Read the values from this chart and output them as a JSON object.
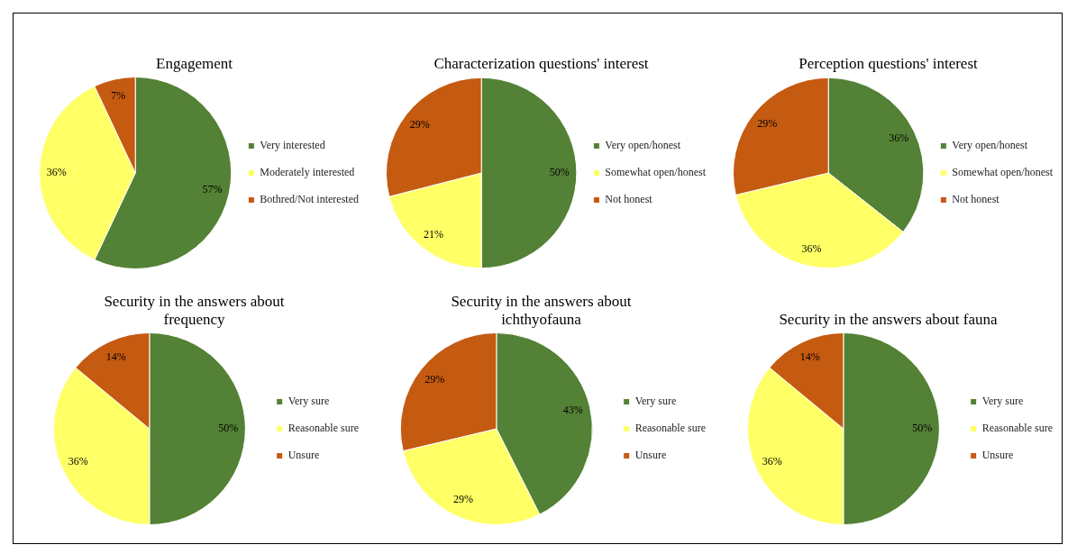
{
  "chart_data": [
    {
      "type": "pie",
      "title": "Engagement",
      "categories": [
        "Very interested",
        "Moderately interested",
        "Bothred/Not interested"
      ],
      "values": [
        57,
        36,
        7
      ],
      "value_labels": [
        "57%",
        "36%",
        "7%"
      ],
      "colors": [
        "#538135",
        "#ffff66",
        "#c55a11"
      ],
      "legend": "right"
    },
    {
      "type": "pie",
      "title": "Characterization questions' interest",
      "categories": [
        "Very open/honest",
        "Somewhat open/honest",
        "Not honest"
      ],
      "values": [
        50,
        21,
        29
      ],
      "value_labels": [
        "50%",
        "21%",
        "29%"
      ],
      "colors": [
        "#538135",
        "#ffff66",
        "#c55a11"
      ],
      "legend": "right"
    },
    {
      "type": "pie",
      "title": "Perception questions' interest",
      "categories": [
        "Very open/honest",
        "Somewhat open/honest",
        "Not honest"
      ],
      "values": [
        36,
        36,
        29
      ],
      "value_labels": [
        "36%",
        "36%",
        "29%"
      ],
      "colors": [
        "#538135",
        "#ffff66",
        "#c55a11"
      ],
      "legend": "right"
    },
    {
      "type": "pie",
      "title": "Security in the answers about frequency",
      "categories": [
        "Very sure",
        "Reasonable sure",
        "Unsure"
      ],
      "values": [
        50,
        36,
        14
      ],
      "value_labels": [
        "50%",
        "36%",
        "14%"
      ],
      "colors": [
        "#538135",
        "#ffff66",
        "#c55a11"
      ],
      "legend": "right"
    },
    {
      "type": "pie",
      "title": "Security in the answers about ichthyofauna",
      "categories": [
        "Very sure",
        "Reasonable sure",
        "Unsure"
      ],
      "values": [
        43,
        29,
        29
      ],
      "value_labels": [
        "43%",
        "29%",
        "29%"
      ],
      "colors": [
        "#538135",
        "#ffff66",
        "#c55a11"
      ],
      "legend": "right"
    },
    {
      "type": "pie",
      "title": "Security in the answers about fauna",
      "categories": [
        "Very sure",
        "Reasonable sure",
        "Unsure"
      ],
      "values": [
        50,
        36,
        14
      ],
      "value_labels": [
        "50%",
        "36%",
        "14%"
      ],
      "colors": [
        "#538135",
        "#ffff66",
        "#c55a11"
      ],
      "legend": "right"
    }
  ]
}
